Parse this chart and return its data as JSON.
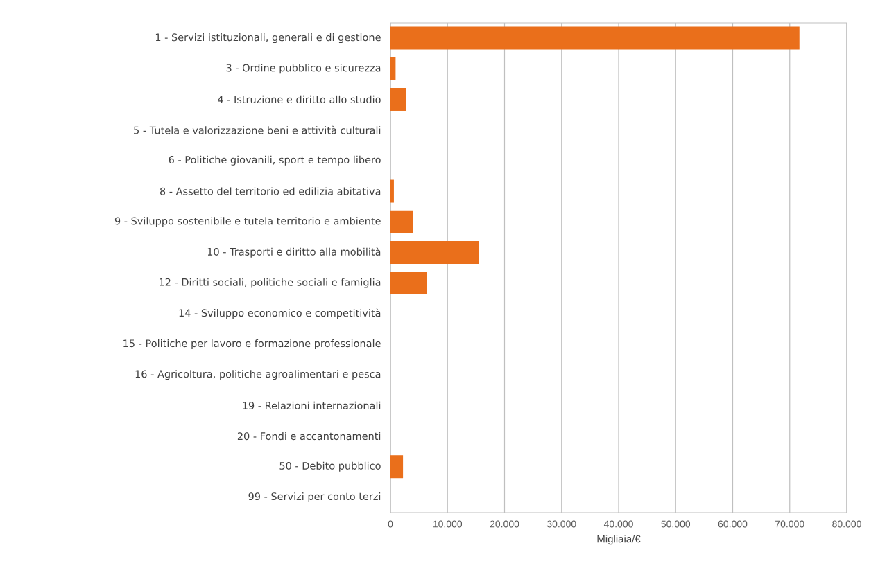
{
  "chart_data": {
    "type": "bar",
    "orientation": "horizontal",
    "xlabel": "Migliaia/€",
    "categories": [
      "1 - Servizi istituzionali, generali e di gestione",
      "3 - Ordine pubblico e sicurezza",
      "4 - Istruzione e diritto allo studio",
      "5 - Tutela e valorizzazione beni e attività culturali",
      "6 - Politiche giovanili, sport e tempo libero",
      "8 - Assetto del territorio ed edilizia abitativa",
      "9 - Sviluppo sostenibile e tutela territorio e ambiente",
      "10 - Trasporti e diritto alla mobilità",
      "12 - Diritti sociali, politiche sociali e famiglia",
      "14 - Sviluppo economico e competitività",
      "15 - Politiche per lavoro e formazione professionale",
      "16 - Agricoltura, politiche agroalimentari e pesca",
      "19 - Relazioni internazionali",
      "20 - Fondi e accantonamenti",
      "50 - Debito pubblico",
      "99 - Servizi per conto terzi"
    ],
    "values": [
      71700,
      900,
      2800,
      0,
      0,
      600,
      3900,
      15500,
      6400,
      0,
      0,
      0,
      0,
      0,
      2200,
      0
    ],
    "color": "#ea6f1b",
    "xlim": [
      0,
      80000
    ],
    "xticks": [
      0,
      {
        "value": 10000,
        "label": "10.000"
      },
      {
        "value": 20000,
        "label": "20.000"
      },
      {
        "value": 30000,
        "label": "30.000"
      },
      {
        "value": 40000,
        "label": "40.000"
      },
      {
        "value": 50000,
        "label": "50.000"
      },
      {
        "value": 60000,
        "label": "60.000"
      },
      {
        "value": 70000,
        "label": "70.000"
      },
      {
        "value": 80000,
        "label": "80.000"
      }
    ],
    "grid": "x"
  }
}
